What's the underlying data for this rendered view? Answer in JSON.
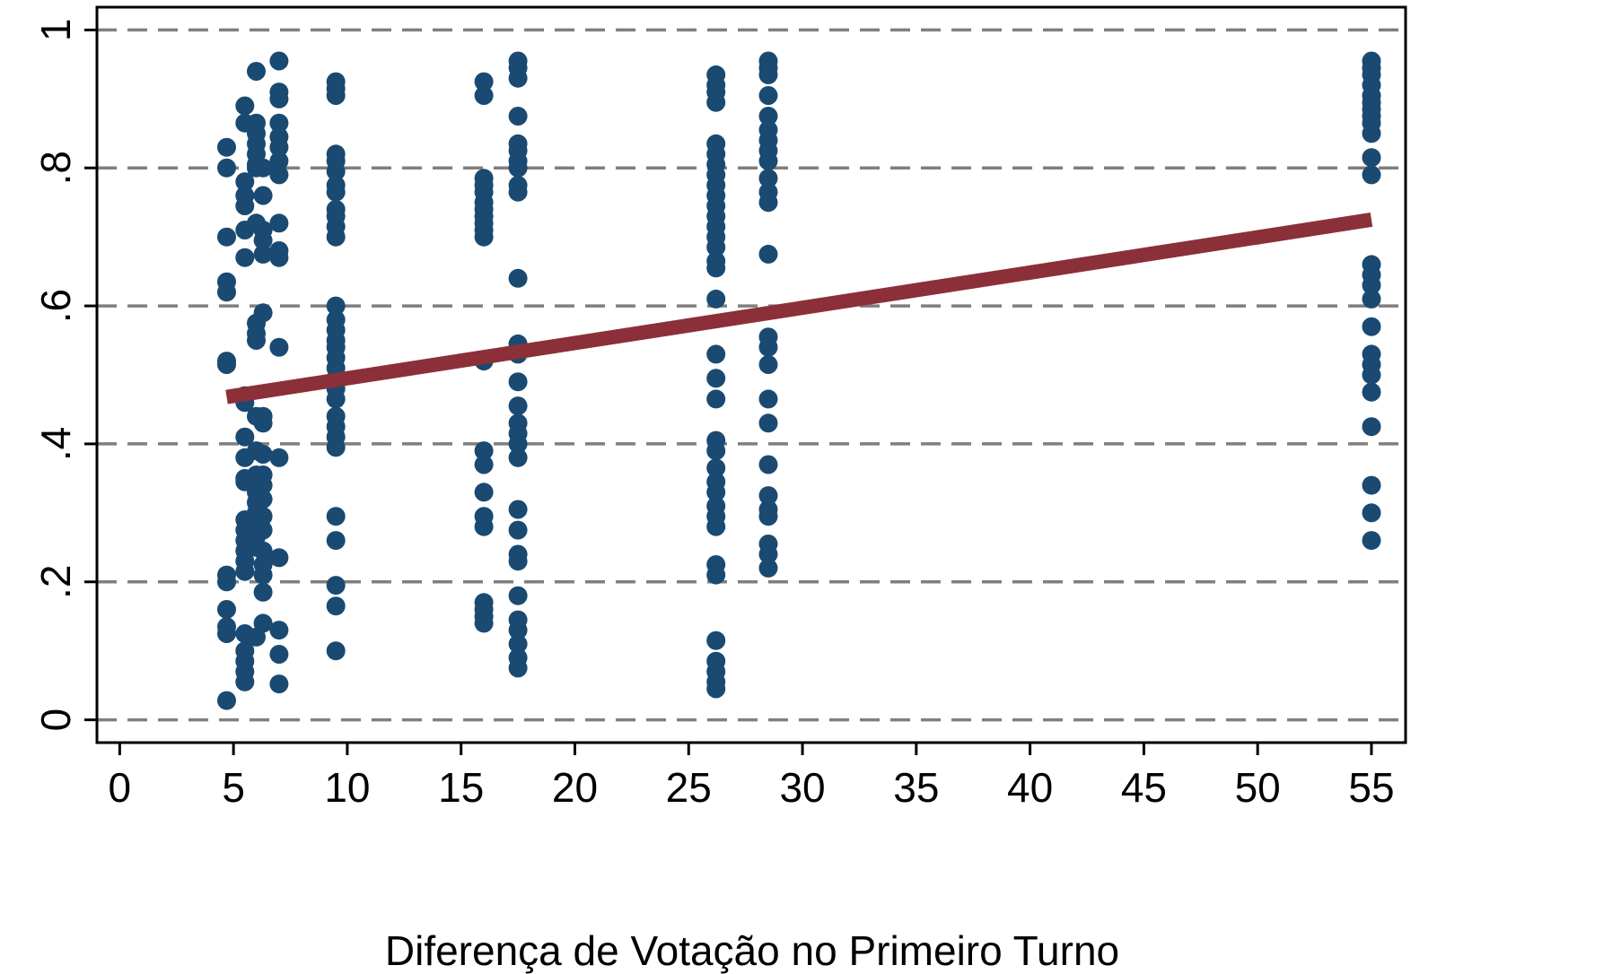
{
  "chart_data": {
    "type": "scatter",
    "title": "",
    "xlabel": "Diferença de Votação no Primeiro Turno",
    "ylabel": "",
    "xlim": [
      -1,
      56.5
    ],
    "ylim": [
      -0.033,
      1.033
    ],
    "x_ticks": [
      0,
      5,
      10,
      15,
      20,
      25,
      30,
      35,
      40,
      45,
      50,
      55
    ],
    "x_tick_labels": [
      "0",
      "5",
      "10",
      "15",
      "20",
      "25",
      "30",
      "35",
      "40",
      "45",
      "50",
      "55"
    ],
    "y_ticks": [
      0,
      0.2,
      0.4,
      0.6,
      0.8,
      1
    ],
    "y_tick_labels": [
      "0",
      ".2",
      ".4",
      ".6",
      ".8",
      "1"
    ],
    "grid": "horizontal dashed",
    "legend": "none",
    "colors": {
      "points": "#1a4a72",
      "fit_line": "#8b3038",
      "grid": "#7f7f7f",
      "axis": "#000000"
    },
    "series": [
      {
        "type": "scatter",
        "points": [
          [
            4.7,
            0.83
          ],
          [
            4.7,
            0.8
          ],
          [
            4.7,
            0.7
          ],
          [
            4.7,
            0.635
          ],
          [
            4.7,
            0.62
          ],
          [
            4.7,
            0.52
          ],
          [
            4.7,
            0.515
          ],
          [
            4.7,
            0.21
          ],
          [
            4.7,
            0.2
          ],
          [
            4.7,
            0.16
          ],
          [
            4.7,
            0.135
          ],
          [
            4.7,
            0.125
          ],
          [
            4.7,
            0.028
          ],
          [
            5.5,
            0.89
          ],
          [
            5.5,
            0.865
          ],
          [
            5.5,
            0.78
          ],
          [
            5.5,
            0.76
          ],
          [
            5.5,
            0.745
          ],
          [
            5.5,
            0.71
          ],
          [
            5.5,
            0.67
          ],
          [
            5.5,
            0.47
          ],
          [
            5.5,
            0.46
          ],
          [
            5.5,
            0.41
          ],
          [
            5.5,
            0.38
          ],
          [
            5.5,
            0.35
          ],
          [
            5.5,
            0.345
          ],
          [
            5.5,
            0.29
          ],
          [
            5.5,
            0.275
          ],
          [
            5.5,
            0.26
          ],
          [
            5.5,
            0.245
          ],
          [
            5.5,
            0.23
          ],
          [
            5.5,
            0.215
          ],
          [
            5.5,
            0.125
          ],
          [
            5.5,
            0.1
          ],
          [
            5.5,
            0.085
          ],
          [
            5.5,
            0.07
          ],
          [
            5.5,
            0.055
          ],
          [
            6.0,
            0.94
          ],
          [
            6.0,
            0.865
          ],
          [
            6.0,
            0.85
          ],
          [
            6.0,
            0.835
          ],
          [
            6.0,
            0.82
          ],
          [
            6.0,
            0.805
          ],
          [
            6.0,
            0.8
          ],
          [
            6.0,
            0.72
          ],
          [
            6.0,
            0.575
          ],
          [
            6.0,
            0.56
          ],
          [
            6.0,
            0.55
          ],
          [
            6.0,
            0.44
          ],
          [
            6.0,
            0.39
          ],
          [
            6.0,
            0.355
          ],
          [
            6.0,
            0.345
          ],
          [
            6.0,
            0.33
          ],
          [
            6.0,
            0.315
          ],
          [
            6.0,
            0.3
          ],
          [
            6.0,
            0.28
          ],
          [
            6.0,
            0.265
          ],
          [
            6.0,
            0.25
          ],
          [
            6.0,
            0.12
          ],
          [
            6.3,
            0.8
          ],
          [
            6.3,
            0.76
          ],
          [
            6.3,
            0.71
          ],
          [
            6.3,
            0.695
          ],
          [
            6.3,
            0.675
          ],
          [
            6.3,
            0.59
          ],
          [
            6.3,
            0.44
          ],
          [
            6.3,
            0.43
          ],
          [
            6.3,
            0.385
          ],
          [
            6.3,
            0.355
          ],
          [
            6.3,
            0.34
          ],
          [
            6.3,
            0.32
          ],
          [
            6.3,
            0.295
          ],
          [
            6.3,
            0.275
          ],
          [
            6.3,
            0.245
          ],
          [
            6.3,
            0.225
          ],
          [
            6.3,
            0.21
          ],
          [
            6.3,
            0.185
          ],
          [
            6.3,
            0.14
          ],
          [
            7.0,
            0.955
          ],
          [
            7.0,
            0.91
          ],
          [
            7.0,
            0.9
          ],
          [
            7.0,
            0.865
          ],
          [
            7.0,
            0.845
          ],
          [
            7.0,
            0.83
          ],
          [
            7.0,
            0.81
          ],
          [
            7.0,
            0.79
          ],
          [
            7.0,
            0.72
          ],
          [
            7.0,
            0.68
          ],
          [
            7.0,
            0.67
          ],
          [
            7.0,
            0.54
          ],
          [
            7.0,
            0.38
          ],
          [
            7.0,
            0.235
          ],
          [
            7.0,
            0.13
          ],
          [
            7.0,
            0.095
          ],
          [
            7.0,
            0.052
          ],
          [
            9.5,
            0.925
          ],
          [
            9.5,
            0.915
          ],
          [
            9.5,
            0.905
          ],
          [
            9.5,
            0.82
          ],
          [
            9.5,
            0.81
          ],
          [
            9.5,
            0.795
          ],
          [
            9.5,
            0.775
          ],
          [
            9.5,
            0.765
          ],
          [
            9.5,
            0.74
          ],
          [
            9.5,
            0.73
          ],
          [
            9.5,
            0.715
          ],
          [
            9.5,
            0.7
          ],
          [
            9.5,
            0.6
          ],
          [
            9.5,
            0.58
          ],
          [
            9.5,
            0.565
          ],
          [
            9.5,
            0.55
          ],
          [
            9.5,
            0.54
          ],
          [
            9.5,
            0.525
          ],
          [
            9.5,
            0.51
          ],
          [
            9.5,
            0.495
          ],
          [
            9.5,
            0.48
          ],
          [
            9.5,
            0.465
          ],
          [
            9.5,
            0.44
          ],
          [
            9.5,
            0.425
          ],
          [
            9.5,
            0.41
          ],
          [
            9.5,
            0.395
          ],
          [
            9.5,
            0.295
          ],
          [
            9.5,
            0.26
          ],
          [
            9.5,
            0.195
          ],
          [
            9.5,
            0.165
          ],
          [
            9.5,
            0.1
          ],
          [
            16.0,
            0.925
          ],
          [
            16.0,
            0.905
          ],
          [
            16.0,
            0.785
          ],
          [
            16.0,
            0.775
          ],
          [
            16.0,
            0.765
          ],
          [
            16.0,
            0.75
          ],
          [
            16.0,
            0.74
          ],
          [
            16.0,
            0.73
          ],
          [
            16.0,
            0.72
          ],
          [
            16.0,
            0.71
          ],
          [
            16.0,
            0.7
          ],
          [
            16.0,
            0.52
          ],
          [
            16.0,
            0.39
          ],
          [
            16.0,
            0.37
          ],
          [
            16.0,
            0.33
          ],
          [
            16.0,
            0.295
          ],
          [
            16.0,
            0.28
          ],
          [
            16.0,
            0.17
          ],
          [
            16.0,
            0.16
          ],
          [
            16.0,
            0.15
          ],
          [
            16.0,
            0.14
          ],
          [
            17.5,
            0.955
          ],
          [
            17.5,
            0.945
          ],
          [
            17.5,
            0.93
          ],
          [
            17.5,
            0.875
          ],
          [
            17.5,
            0.835
          ],
          [
            17.5,
            0.825
          ],
          [
            17.5,
            0.81
          ],
          [
            17.5,
            0.8
          ],
          [
            17.5,
            0.775
          ],
          [
            17.5,
            0.765
          ],
          [
            17.5,
            0.64
          ],
          [
            17.5,
            0.545
          ],
          [
            17.5,
            0.53
          ],
          [
            17.5,
            0.49
          ],
          [
            17.5,
            0.455
          ],
          [
            17.5,
            0.43
          ],
          [
            17.5,
            0.415
          ],
          [
            17.5,
            0.4
          ],
          [
            17.5,
            0.38
          ],
          [
            17.5,
            0.305
          ],
          [
            17.5,
            0.275
          ],
          [
            17.5,
            0.24
          ],
          [
            17.5,
            0.23
          ],
          [
            17.5,
            0.18
          ],
          [
            17.5,
            0.145
          ],
          [
            17.5,
            0.13
          ],
          [
            17.5,
            0.11
          ],
          [
            17.5,
            0.09
          ],
          [
            17.5,
            0.075
          ],
          [
            26.2,
            0.935
          ],
          [
            26.2,
            0.92
          ],
          [
            26.2,
            0.91
          ],
          [
            26.2,
            0.895
          ],
          [
            26.2,
            0.835
          ],
          [
            26.2,
            0.82
          ],
          [
            26.2,
            0.805
          ],
          [
            26.2,
            0.79
          ],
          [
            26.2,
            0.775
          ],
          [
            26.2,
            0.76
          ],
          [
            26.2,
            0.745
          ],
          [
            26.2,
            0.73
          ],
          [
            26.2,
            0.715
          ],
          [
            26.2,
            0.7
          ],
          [
            26.2,
            0.685
          ],
          [
            26.2,
            0.665
          ],
          [
            26.2,
            0.655
          ],
          [
            26.2,
            0.61
          ],
          [
            26.2,
            0.53
          ],
          [
            26.2,
            0.495
          ],
          [
            26.2,
            0.465
          ],
          [
            26.2,
            0.405
          ],
          [
            26.2,
            0.39
          ],
          [
            26.2,
            0.365
          ],
          [
            26.2,
            0.345
          ],
          [
            26.2,
            0.33
          ],
          [
            26.2,
            0.31
          ],
          [
            26.2,
            0.295
          ],
          [
            26.2,
            0.28
          ],
          [
            26.2,
            0.225
          ],
          [
            26.2,
            0.21
          ],
          [
            26.2,
            0.115
          ],
          [
            26.2,
            0.085
          ],
          [
            26.2,
            0.07
          ],
          [
            26.2,
            0.055
          ],
          [
            26.2,
            0.045
          ],
          [
            28.5,
            0.955
          ],
          [
            28.5,
            0.945
          ],
          [
            28.5,
            0.935
          ],
          [
            28.5,
            0.905
          ],
          [
            28.5,
            0.875
          ],
          [
            28.5,
            0.855
          ],
          [
            28.5,
            0.84
          ],
          [
            28.5,
            0.825
          ],
          [
            28.5,
            0.81
          ],
          [
            28.5,
            0.785
          ],
          [
            28.5,
            0.765
          ],
          [
            28.5,
            0.75
          ],
          [
            28.5,
            0.675
          ],
          [
            28.5,
            0.555
          ],
          [
            28.5,
            0.54
          ],
          [
            28.5,
            0.515
          ],
          [
            28.5,
            0.465
          ],
          [
            28.5,
            0.43
          ],
          [
            28.5,
            0.37
          ],
          [
            28.5,
            0.325
          ],
          [
            28.5,
            0.305
          ],
          [
            28.5,
            0.295
          ],
          [
            28.5,
            0.255
          ],
          [
            28.5,
            0.24
          ],
          [
            28.5,
            0.22
          ],
          [
            55.0,
            0.955
          ],
          [
            55.0,
            0.945
          ],
          [
            55.0,
            0.935
          ],
          [
            55.0,
            0.92
          ],
          [
            55.0,
            0.905
          ],
          [
            55.0,
            0.895
          ],
          [
            55.0,
            0.885
          ],
          [
            55.0,
            0.875
          ],
          [
            55.0,
            0.865
          ],
          [
            55.0,
            0.85
          ],
          [
            55.0,
            0.815
          ],
          [
            55.0,
            0.79
          ],
          [
            55.0,
            0.66
          ],
          [
            55.0,
            0.645
          ],
          [
            55.0,
            0.63
          ],
          [
            55.0,
            0.61
          ],
          [
            55.0,
            0.57
          ],
          [
            55.0,
            0.53
          ],
          [
            55.0,
            0.515
          ],
          [
            55.0,
            0.5
          ],
          [
            55.0,
            0.475
          ],
          [
            55.0,
            0.425
          ],
          [
            55.0,
            0.34
          ],
          [
            55.0,
            0.3
          ],
          [
            55.0,
            0.26
          ]
        ]
      },
      {
        "type": "line",
        "points": [
          [
            4.7,
            0.468
          ],
          [
            55.0,
            0.725
          ]
        ]
      }
    ]
  }
}
